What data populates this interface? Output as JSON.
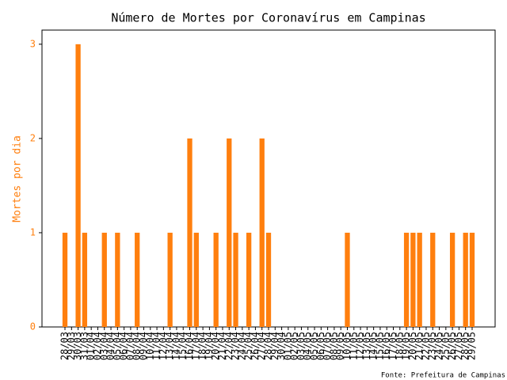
{
  "chart_data": {
    "type": "bar",
    "title": "Número de Mortes por Coronavírus em Campinas",
    "y_label": "Mortes por dia",
    "source": "Fonte: Prefeitura de Campinas",
    "color": "#ff7f0e",
    "categories": [
      "28/03",
      "29/03",
      "30/03",
      "31/03",
      "01/04",
      "02/04",
      "03/04",
      "04/04",
      "05/04",
      "06/04",
      "07/04",
      "08/04",
      "09/04",
      "10/04",
      "11/04",
      "12/04",
      "13/04",
      "14/04",
      "15/04",
      "16/04",
      "17/04",
      "18/04",
      "19/04",
      "20/04",
      "21/04",
      "22/04",
      "23/04",
      "24/04",
      "25/04",
      "26/04",
      "27/04",
      "28/04",
      "29/04",
      "30/04",
      "01/05",
      "02/05",
      "03/05",
      "04/05",
      "05/05",
      "06/05",
      "07/05",
      "08/05",
      "09/05",
      "10/05",
      "11/05",
      "12/05",
      "13/05",
      "14/05",
      "15/05",
      "16/05",
      "17/05",
      "18/05",
      "19/05",
      "20/05",
      "21/05",
      "22/05",
      "23/05",
      "24/05",
      "25/05",
      "26/05",
      "27/05",
      "28/05",
      "29/05"
    ],
    "values": [
      1,
      0,
      3,
      1,
      0,
      0,
      1,
      0,
      1,
      0,
      0,
      1,
      0,
      0,
      0,
      0,
      1,
      0,
      0,
      2,
      1,
      0,
      0,
      1,
      0,
      2,
      1,
      0,
      1,
      0,
      2,
      1,
      0,
      0,
      0,
      0,
      0,
      0,
      0,
      0,
      0,
      0,
      0,
      1,
      0,
      0,
      0,
      0,
      0,
      0,
      0,
      0,
      1,
      1,
      1,
      0,
      1,
      0,
      0,
      1,
      0,
      1,
      1
    ],
    "ylim": [
      0,
      3.15
    ],
    "yticks": [
      0,
      1,
      2,
      3
    ]
  }
}
